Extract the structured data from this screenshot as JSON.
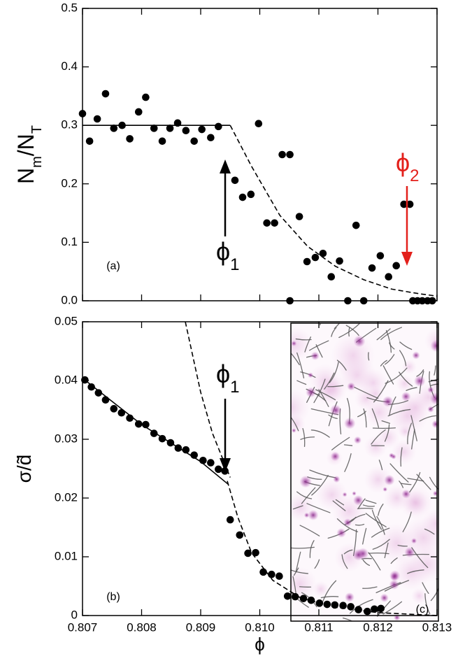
{
  "chart_data": [
    {
      "type": "scatter",
      "panel_label": "(a)",
      "y_label": [
        {
          "text": "N"
        },
        {
          "text": "m",
          "sub": true
        },
        {
          "text": "/N"
        },
        {
          "text": "T",
          "sub": true
        }
      ],
      "xlim": [
        0.807,
        0.813
      ],
      "xticks": [
        0.807,
        0.808,
        0.809,
        {
          "value": 0.81,
          "label": "0.810"
        },
        0.811,
        0.812,
        0.813
      ],
      "show_xtick_labels": false,
      "ylim": [
        0,
        0.5
      ],
      "yticks": [
        {
          "value": 0,
          "label": "0.0"
        },
        0.1,
        0.2,
        0.3,
        0.4,
        0.5
      ],
      "series": [
        {
          "style": "points",
          "color": "#000000",
          "x": [
            0.807,
            0.80712,
            0.80725,
            0.80739,
            0.80753,
            0.80767,
            0.8078,
            0.80795,
            0.80807,
            0.80821,
            0.80835,
            0.80848,
            0.80861,
            0.80875,
            0.80889,
            0.80902,
            0.80917,
            0.8093,
            0.80958,
            0.80971,
            0.80985,
            0.80998,
            0.81012,
            0.81025,
            0.81038,
            0.81051,
            0.81051,
            0.81067,
            0.8108,
            0.81094,
            0.81107,
            0.81121,
            0.81135,
            0.81149,
            0.81163,
            0.81176,
            0.8119,
            0.81204,
            0.81218,
            0.81231,
            0.81244,
            0.81254,
            0.81259,
            0.81267,
            0.81275,
            0.81284,
            0.81292
          ],
          "values": [
            0.32,
            0.273,
            0.311,
            0.354,
            0.295,
            0.3,
            0.277,
            0.323,
            0.348,
            0.295,
            0.273,
            0.295,
            0.304,
            0.291,
            0.273,
            0.293,
            0.279,
            0.298,
            0.206,
            0.177,
            0.182,
            0.303,
            0.133,
            0.133,
            0.25,
            0.25,
            0,
            0.144,
            0.067,
            0.074,
            0.081,
            0.041,
            0.068,
            0,
            0.129,
            0,
            0.056,
            0.077,
            0.041,
            0.06,
            0.165,
            0.165,
            0,
            0,
            0,
            0,
            0
          ]
        },
        {
          "style": "solid",
          "color": "#000000",
          "x": [
            0.807,
            0.8095
          ],
          "values": [
            0.3,
            0.3
          ]
        },
        {
          "style": "dashed",
          "color": "#000000",
          "x": [
            0.8095,
            0.80986,
            0.81034,
            0.81081,
            0.81128,
            0.81176,
            0.81223,
            0.8127,
            0.813
          ],
          "values": [
            0.3,
            0.23,
            0.146,
            0.093,
            0.059,
            0.036,
            0.02,
            0.012,
            0.008
          ]
        }
      ],
      "annotations": [
        {
          "text": "ϕ",
          "sub": "1",
          "color": "#000000"
        },
        {
          "text": "ϕ",
          "sub": "2",
          "color": "#e3201b"
        }
      ]
    },
    {
      "type": "scatter",
      "panel_label": "(b)",
      "inset_label": "(c)",
      "y_label": [
        {
          "text": "σ/d̃"
        }
      ],
      "x_label": "ϕ",
      "xlim": [
        0.807,
        0.813
      ],
      "xticks": [
        0.807,
        0.808,
        0.809,
        {
          "value": 0.81,
          "label": "0.810"
        },
        0.811,
        0.812,
        0.813
      ],
      "show_xtick_labels": true,
      "ylim": [
        0,
        0.05
      ],
      "yticks": [
        0,
        0.01,
        0.02,
        0.03,
        0.04,
        0.05
      ],
      "series": [
        {
          "style": "points",
          "color": "#000000",
          "x": [
            0.80704,
            0.80715,
            0.80727,
            0.80739,
            0.80753,
            0.80766,
            0.8078,
            0.80795,
            0.80807,
            0.80821,
            0.80835,
            0.80849,
            0.80862,
            0.80875,
            0.80889,
            0.80904,
            0.80917,
            0.8093,
            0.80941,
            0.8095,
            0.80966,
            0.8098,
            0.80993,
            0.81006,
            0.8102,
            0.81033,
            0.81047,
            0.8106,
            0.81074,
            0.81087,
            0.81101,
            0.81114,
            0.81127,
            0.81141,
            0.81154,
            0.81167,
            0.81182,
            0.81194,
            0.81205
          ],
          "values": [
            0.0401,
            0.0389,
            0.0379,
            0.0367,
            0.0352,
            0.0345,
            0.0336,
            0.0326,
            0.0325,
            0.031,
            0.0301,
            0.0294,
            0.0285,
            0.0282,
            0.0273,
            0.0264,
            0.026,
            0.0249,
            0.0246,
            0.0163,
            0.0137,
            0.0106,
            0.0107,
            0.0074,
            0.007,
            0.0067,
            0.0033,
            0.0032,
            0.0029,
            0.0026,
            0.0021,
            0.0019,
            0.0018,
            0.0017,
            0.0015,
            0.001,
            0.0007,
            0.0011,
            0.0012
          ]
        },
        {
          "style": "solid",
          "color": "#000000",
          "x": [
            0.807,
            0.808,
            0.809,
            0.80947
          ],
          "values": [
            0.0404,
            0.0325,
            0.0262,
            0.0223
          ]
        },
        {
          "style": "dashed",
          "color": "#000000",
          "x": [
            0.80874,
            0.809,
            0.8092,
            0.8094,
            0.8095
          ],
          "values": [
            0.05,
            0.038,
            0.031,
            0.026,
            0.0235
          ]
        },
        {
          "style": "dashed",
          "color": "#000000",
          "x": [
            0.80945,
            0.80963,
            0.80986,
            0.81022,
            0.81069,
            0.81128,
            0.81199,
            0.813
          ],
          "values": [
            0.0229,
            0.0167,
            0.0107,
            0.006,
            0.003,
            0.0014,
            0.0005,
            0
          ]
        }
      ],
      "annotations": [
        {
          "text": "ϕ",
          "sub": "1",
          "color": "#000000"
        }
      ]
    }
  ]
}
